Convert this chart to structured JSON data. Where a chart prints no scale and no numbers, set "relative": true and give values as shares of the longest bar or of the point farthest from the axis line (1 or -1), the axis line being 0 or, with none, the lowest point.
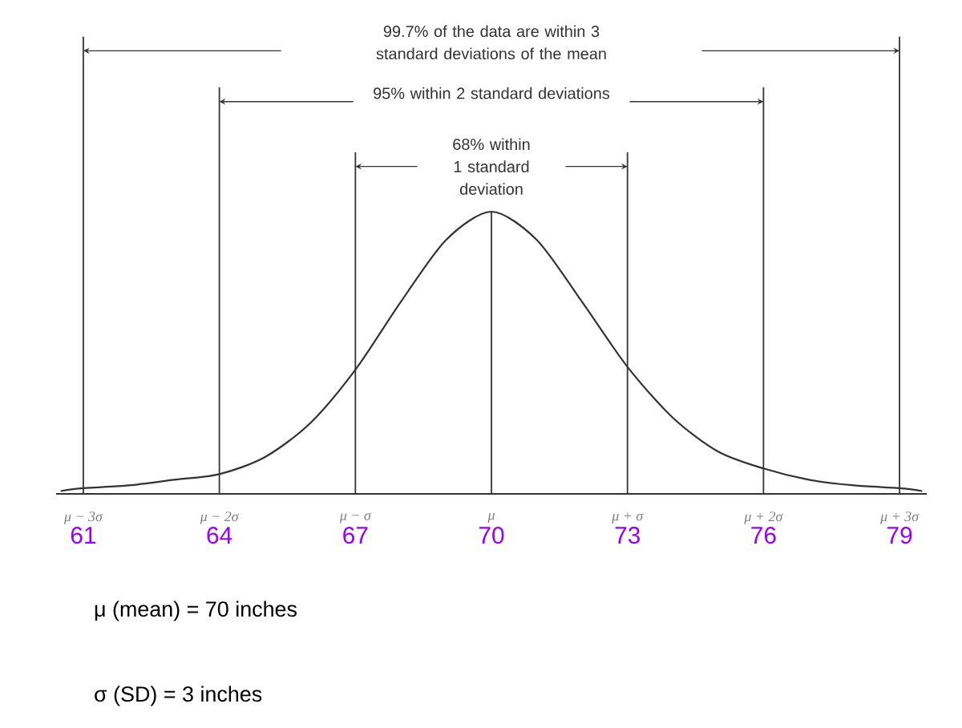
{
  "chart_data": {
    "type": "line",
    "relative": true,
    "color": "#333333",
    "x": [
      60.5,
      61,
      62,
      63,
      64,
      65,
      66,
      67,
      68,
      69,
      70,
      71,
      72,
      73,
      74,
      75,
      76,
      77,
      78,
      79,
      79.5
    ],
    "values": [
      0.01,
      0.02,
      0.03,
      0.05,
      0.07,
      0.13,
      0.25,
      0.44,
      0.68,
      0.9,
      1,
      0.9,
      0.68,
      0.45,
      0.27,
      0.15,
      0.09,
      0.05,
      0.03,
      0.02,
      0.01
    ],
    "xlim": [
      60.4,
      79.6
    ],
    "xticks": [
      61,
      64,
      67,
      70,
      73,
      76,
      79
    ],
    "ref_lines": [
      {
        "axis": "x",
        "value": 61
      },
      {
        "axis": "x",
        "value": 79
      },
      {
        "axis": "x",
        "value": 64
      },
      {
        "axis": "x",
        "value": 76
      },
      {
        "axis": "x",
        "value": 67
      },
      {
        "axis": "x",
        "value": 73
      },
      {
        "axis": "x",
        "value": 70
      }
    ],
    "annotations": [
      "99.7% of the data are within 3 standard deviations of the mean",
      "95% within 2 standard deviations",
      "68% within 1 standard deviation",
      {
        "text": "μ − 3σ",
        "x": 61,
        "y": 0
      },
      {
        "text": "μ − 2σ",
        "x": 64,
        "y": 0
      },
      {
        "text": "μ − σ",
        "x": 67,
        "y": 0
      },
      {
        "text": "μ",
        "x": 70,
        "y": 0
      },
      {
        "text": "μ + σ",
        "x": 73,
        "y": 0
      },
      {
        "text": "μ + 2σ",
        "x": 76,
        "y": 0
      },
      {
        "text": "μ + 3σ",
        "x": 79,
        "y": 0
      },
      "μ (mean) = 70 inches",
      "σ (SD) = 3 inches"
    ]
  }
}
